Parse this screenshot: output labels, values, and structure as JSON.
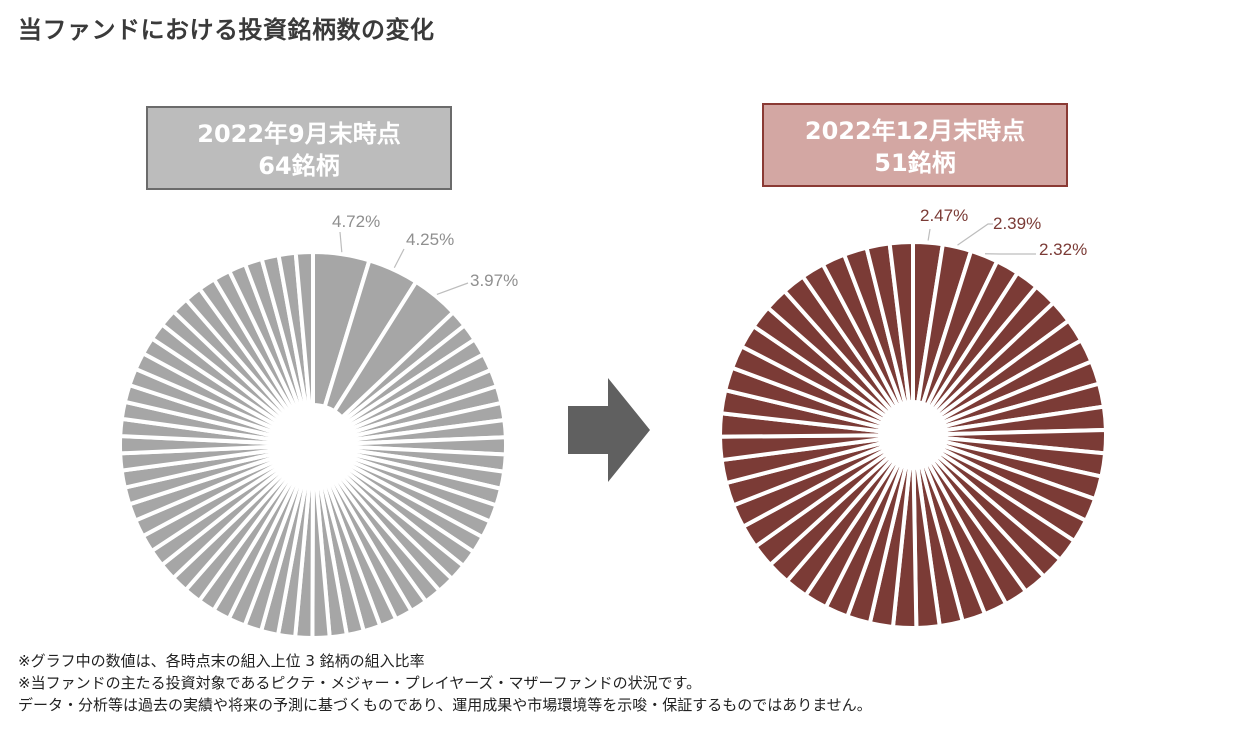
{
  "title": "当ファンドにおける投資銘柄数の変化",
  "periods": [
    {
      "label": "2022年9月末時点",
      "count": "64銘柄"
    },
    {
      "label": "2022年12月末時点",
      "count": "51銘柄"
    }
  ],
  "chart_data": [
    {
      "type": "pie",
      "title": "2022年9月末時点 64銘柄",
      "slice_count": 64,
      "labeled_values": [
        4.72,
        4.25,
        3.97
      ],
      "value_labels": [
        "4.72%",
        "4.25%",
        "3.97%"
      ],
      "color": "#a6a6a6",
      "donut": true
    },
    {
      "type": "pie",
      "title": "2022年12月末時点 51銘柄",
      "slice_count": 51,
      "labeled_values": [
        2.47,
        2.39,
        2.32
      ],
      "value_labels": [
        "2.47%",
        "2.39%",
        "2.32%"
      ],
      "color": "#7b3b36",
      "donut": true
    }
  ],
  "arrow_color": "#606060",
  "notes": [
    "※グラフ中の数値は、各時点末の組入上位 3 銘柄の組入比率",
    "※当ファンドの主たる投資対象であるピクテ・メジャー・プレイヤーズ・マザーファンドの状況です。",
    "データ・分析等は過去の実績や将来の予測に基づくものであり、運用成果や市場環境等を示唆・保証するものではありません。"
  ]
}
